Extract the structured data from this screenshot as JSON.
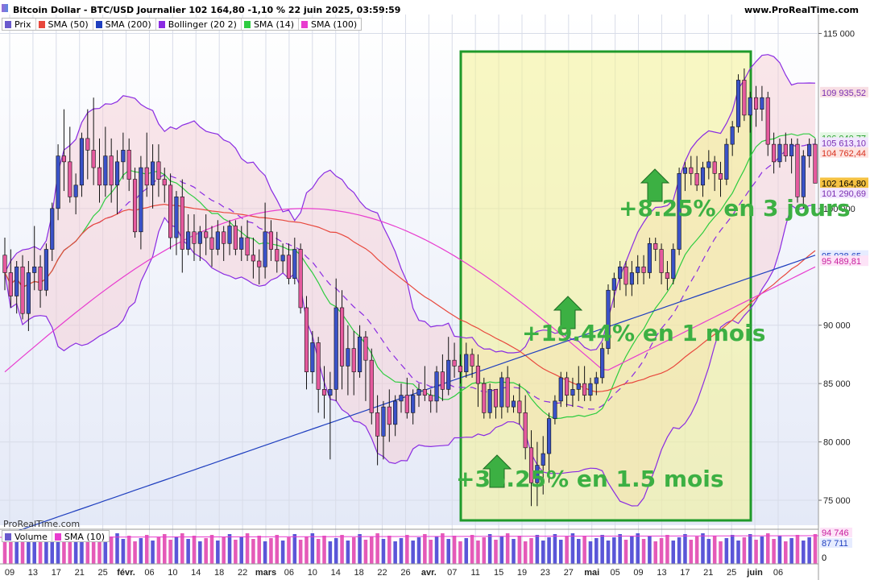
{
  "header": {
    "title": "Bitcoin Dollar - BTC/USD Journalier 102 164,80 -1,10 % 22 juin 2025, 03:59:59",
    "site": "www.ProRealTime.com",
    "watermark": "ProRealTime.com"
  },
  "legend": [
    {
      "label": "Prix",
      "color": "#6a5acd"
    },
    {
      "label": "SMA (50)",
      "color": "#e8473c"
    },
    {
      "label": "SMA (200)",
      "color": "#1f3fbf"
    },
    {
      "label": "Bollinger (20 2)",
      "color": "#8a2be2"
    },
    {
      "label": "SMA (14)",
      "color": "#2ecc40"
    },
    {
      "label": "SMA (100)",
      "color": "#e83ccf"
    }
  ],
  "volume_legend": [
    {
      "label": "Volume",
      "color": "#6a5acd"
    },
    {
      "label": "SMA (10)",
      "color": "#e83ccf"
    }
  ],
  "annotations": [
    {
      "text": "+35.25% en 1.5 mois"
    },
    {
      "text": "+19.44% en 1 mois"
    },
    {
      "text": "+8.25% en 3 jours"
    }
  ],
  "chart_data": {
    "type": "candlestick",
    "ylim": [
      73000,
      116000
    ],
    "y_ticks": [
      {
        "value": 115000,
        "label": "115 000"
      },
      {
        "value": 100000,
        "label": "100 000"
      },
      {
        "value": 90000,
        "label": "90 000"
      },
      {
        "value": 85000,
        "label": "85 000"
      },
      {
        "value": 80000,
        "label": "80 000"
      },
      {
        "value": 75000,
        "label": "75 000"
      }
    ],
    "price_tags": [
      {
        "value": 109935.52,
        "label": "109 935,52",
        "bg": "#f8dfe4",
        "fg": "#7a2fb0"
      },
      {
        "value": 106040.77,
        "label": "106 040,77",
        "bg": "#e3f7e3",
        "fg": "#229a2a"
      },
      {
        "value": 105613.1,
        "label": "105 613,10",
        "bg": "#f2e6ff",
        "fg": "#7a2fb0"
      },
      {
        "value": 104762.44,
        "label": "104 762,44",
        "bg": "#fde3e0",
        "fg": "#d8321f"
      },
      {
        "value": 102164.8,
        "label": "102 164,80",
        "bg": "#f5c242",
        "fg": "#000000"
      },
      {
        "value": 101290.69,
        "label": "101 290,69",
        "bg": "#f2e6ff",
        "fg": "#7a2fb0"
      },
      {
        "value": 95938.65,
        "label": "95 938,65",
        "bg": "#e6ecff",
        "fg": "#1f3fbf"
      },
      {
        "value": 95489.81,
        "label": "95 489,81",
        "bg": "#fde3f7",
        "fg": "#c8209e"
      }
    ],
    "x_labels": [
      "09",
      "13",
      "17",
      "21",
      "25",
      "févr.",
      "06",
      "10",
      "14",
      "18",
      "22",
      "mars",
      "06",
      "10",
      "14",
      "18",
      "22",
      "26",
      "avr.",
      "07",
      "11",
      "15",
      "19",
      "23",
      "27",
      "mai",
      "05",
      "09",
      "13",
      "17",
      "21",
      "25",
      "juin",
      "06"
    ],
    "x_bold": [
      "févr.",
      "mars",
      "avr.",
      "mai",
      "juin"
    ],
    "candles": [
      [
        96000,
        97500,
        93000,
        94500
      ],
      [
        94500,
        96500,
        91500,
        92500
      ],
      [
        92500,
        95500,
        91000,
        95000
      ],
      [
        95000,
        96000,
        90500,
        91000
      ],
      [
        91000,
        95500,
        89500,
        94500
      ],
      [
        94500,
        98500,
        93000,
        95000
      ],
      [
        95000,
        96000,
        91500,
        93000
      ],
      [
        93000,
        97000,
        92500,
        96500
      ],
      [
        96500,
        100500,
        95500,
        100000
      ],
      [
        100000,
        105500,
        99000,
        104500
      ],
      [
        104500,
        108500,
        101500,
        104000
      ],
      [
        104000,
        107000,
        100500,
        101000
      ],
      [
        101000,
        103000,
        99500,
        102000
      ],
      [
        102000,
        106500,
        101000,
        106000
      ],
      [
        106000,
        108500,
        102500,
        105000
      ],
      [
        105000,
        109500,
        102000,
        103500
      ],
      [
        103500,
        106000,
        100500,
        102000
      ],
      [
        102000,
        107000,
        101000,
        104500
      ],
      [
        104500,
        106000,
        100500,
        102000
      ],
      [
        102000,
        105000,
        99500,
        104000
      ],
      [
        104000,
        106500,
        102500,
        105000
      ],
      [
        105000,
        106000,
        101500,
        102500
      ],
      [
        102500,
        103500,
        97500,
        98000
      ],
      [
        98000,
        104500,
        96500,
        103500
      ],
      [
        103500,
        106500,
        101000,
        102000
      ],
      [
        102000,
        105500,
        100000,
        104000
      ],
      [
        104000,
        105500,
        101000,
        102500
      ],
      [
        102500,
        103500,
        100500,
        102000
      ],
      [
        102000,
        103000,
        96500,
        97500
      ],
      [
        97500,
        101500,
        96000,
        101000
      ],
      [
        101000,
        102500,
        94500,
        96500
      ],
      [
        96500,
        99500,
        96000,
        98000
      ],
      [
        98000,
        99500,
        95500,
        97000
      ],
      [
        97000,
        98500,
        95500,
        98000
      ],
      [
        98000,
        99500,
        96000,
        97500
      ],
      [
        97500,
        98500,
        95000,
        96500
      ],
      [
        96500,
        99000,
        96000,
        98000
      ],
      [
        98000,
        98500,
        95500,
        97000
      ],
      [
        97000,
        99000,
        96000,
        98500
      ],
      [
        98500,
        99000,
        96000,
        96500
      ],
      [
        96500,
        98500,
        95500,
        97500
      ],
      [
        97500,
        99000,
        95500,
        96000
      ],
      [
        96000,
        97500,
        94000,
        95500
      ],
      [
        95500,
        96500,
        93500,
        95000
      ],
      [
        95000,
        100500,
        94000,
        98000
      ],
      [
        98000,
        99000,
        95500,
        96500
      ],
      [
        96500,
        98000,
        94500,
        95500
      ],
      [
        95500,
        97000,
        94500,
        96000
      ],
      [
        96000,
        97000,
        93500,
        94000
      ],
      [
        94000,
        97500,
        93500,
        96500
      ],
      [
        96500,
        97000,
        91000,
        91500
      ],
      [
        91500,
        92500,
        84500,
        86000
      ],
      [
        86000,
        89500,
        85000,
        88500
      ],
      [
        88500,
        89000,
        82500,
        84500
      ],
      [
        84500,
        86500,
        82000,
        84000
      ],
      [
        84000,
        86000,
        78500,
        84500
      ],
      [
        84500,
        94000,
        83500,
        91500
      ],
      [
        91500,
        93000,
        84500,
        86500
      ],
      [
        86500,
        90000,
        84000,
        88000
      ],
      [
        88000,
        89500,
        84000,
        86000
      ],
      [
        86000,
        90000,
        85500,
        89000
      ],
      [
        89000,
        89500,
        83500,
        87000
      ],
      [
        87000,
        88000,
        81500,
        82500
      ],
      [
        82500,
        84000,
        78000,
        80500
      ],
      [
        80500,
        83500,
        78500,
        83000
      ],
      [
        83000,
        84500,
        80000,
        81500
      ],
      [
        81500,
        84000,
        80500,
        83500
      ],
      [
        83500,
        85000,
        82500,
        84000
      ],
      [
        84000,
        85500,
        82000,
        82500
      ],
      [
        82500,
        84500,
        81500,
        84000
      ],
      [
        84000,
        85000,
        83000,
        84500
      ],
      [
        84500,
        86500,
        83500,
        84000
      ],
      [
        84000,
        84500,
        82500,
        83500
      ],
      [
        83500,
        86500,
        82500,
        86000
      ],
      [
        86000,
        87500,
        83500,
        84500
      ],
      [
        84500,
        89000,
        84000,
        87000
      ],
      [
        87000,
        88500,
        85500,
        86500
      ],
      [
        86500,
        87500,
        85000,
        86000
      ],
      [
        86000,
        88500,
        85500,
        87500
      ],
      [
        87500,
        88000,
        85500,
        86500
      ],
      [
        86500,
        87500,
        83000,
        85000
      ],
      [
        85000,
        85500,
        82000,
        82500
      ],
      [
        82500,
        85000,
        82000,
        84500
      ],
      [
        84500,
        84500,
        82000,
        83000
      ],
      [
        83000,
        86000,
        82000,
        85500
      ],
      [
        85500,
        86500,
        82500,
        83000
      ],
      [
        83000,
        84000,
        82500,
        83500
      ],
      [
        83500,
        85000,
        81500,
        82500
      ],
      [
        82500,
        84000,
        78500,
        79500
      ],
      [
        79500,
        81000,
        74500,
        76500
      ],
      [
        76500,
        80000,
        74500,
        78000
      ],
      [
        78000,
        80500,
        75500,
        79000
      ],
      [
        79000,
        82500,
        76500,
        82000
      ],
      [
        82000,
        84000,
        81500,
        83500
      ],
      [
        83500,
        86000,
        83000,
        85500
      ],
      [
        85500,
        86000,
        83000,
        84000
      ],
      [
        84000,
        85500,
        83000,
        84500
      ],
      [
        84500,
        86500,
        83500,
        85000
      ],
      [
        85000,
        86500,
        83500,
        84000
      ],
      [
        84000,
        85500,
        83500,
        85000
      ],
      [
        85000,
        86000,
        84000,
        85500
      ],
      [
        85500,
        88500,
        85000,
        88000
      ],
      [
        88000,
        93500,
        87500,
        93000
      ],
      [
        93000,
        94500,
        91500,
        94000
      ],
      [
        94000,
        95500,
        93000,
        95000
      ],
      [
        95000,
        95500,
        92500,
        93500
      ],
      [
        93500,
        95500,
        92500,
        94500
      ],
      [
        94500,
        96000,
        93500,
        95000
      ],
      [
        95000,
        96000,
        93500,
        94500
      ],
      [
        94500,
        97500,
        94000,
        97000
      ],
      [
        97000,
        97500,
        95500,
        96500
      ],
      [
        96500,
        97000,
        93500,
        94500
      ],
      [
        94500,
        95500,
        93000,
        94000
      ],
      [
        94000,
        97000,
        93500,
        96500
      ],
      [
        96500,
        103500,
        96000,
        103000
      ],
      [
        103000,
        104000,
        101500,
        103500
      ],
      [
        103500,
        104500,
        102000,
        103000
      ],
      [
        103000,
        104500,
        101500,
        102000
      ],
      [
        102000,
        104000,
        101000,
        103500
      ],
      [
        103500,
        105000,
        102500,
        104000
      ],
      [
        104000,
        104500,
        101500,
        103000
      ],
      [
        103000,
        104000,
        101000,
        102500
      ],
      [
        102500,
        106000,
        102000,
        105500
      ],
      [
        105500,
        107500,
        104500,
        107000
      ],
      [
        107000,
        111500,
        106500,
        111000
      ],
      [
        111000,
        112000,
        107500,
        108000
      ],
      [
        108000,
        110000,
        106500,
        109500
      ],
      [
        109500,
        110500,
        107000,
        108500
      ],
      [
        108500,
        110500,
        107500,
        109500
      ],
      [
        109500,
        110000,
        104500,
        105500
      ],
      [
        105500,
        106500,
        103000,
        104000
      ],
      [
        104000,
        106000,
        103500,
        105500
      ],
      [
        105500,
        106500,
        104000,
        104500
      ],
      [
        104500,
        106000,
        103000,
        105500
      ],
      [
        105500,
        106000,
        100500,
        101000
      ],
      [
        101000,
        105000,
        100000,
        104500
      ],
      [
        104500,
        106000,
        103500,
        105500
      ],
      [
        105500,
        106000,
        102164.8,
        102164.8
      ]
    ]
  }
}
